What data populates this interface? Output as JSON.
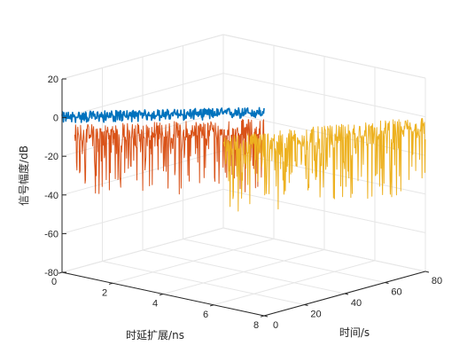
{
  "chart_data": {
    "type": "line",
    "view": "3d",
    "xlabel": "时延扩展/ns",
    "ylabel": "时间/s",
    "zlabel": "信号幅度/dB",
    "xlim": [
      0,
      8
    ],
    "ylim": [
      0,
      80
    ],
    "zlim": [
      -80,
      20
    ],
    "x_ticks": [
      "0",
      "2",
      "4",
      "6",
      "8"
    ],
    "y_ticks": [
      "0",
      "20",
      "40",
      "60",
      "80"
    ],
    "z_ticks": [
      "-80",
      "-60",
      "-40",
      "-20",
      "0",
      "20"
    ],
    "grid": true,
    "series": [
      {
        "color": "#0072BD",
        "x_range": [
          0,
          8
        ],
        "y": 0,
        "z_mean_range": [
          0,
          25
        ],
        "noise_down": 3,
        "noise_up": 3
      },
      {
        "color": "#D95319",
        "x_range": [
          0.5,
          8
        ],
        "y": 0,
        "z_mean_range": [
          -10,
          14
        ],
        "noise_down": 30,
        "noise_up": 8
      },
      {
        "color": "#EDB120",
        "x_range": [
          0,
          8
        ],
        "y": 80,
        "z_mean_range": [
          -40,
          -8
        ],
        "noise_down": 33,
        "noise_up": 8
      }
    ]
  }
}
